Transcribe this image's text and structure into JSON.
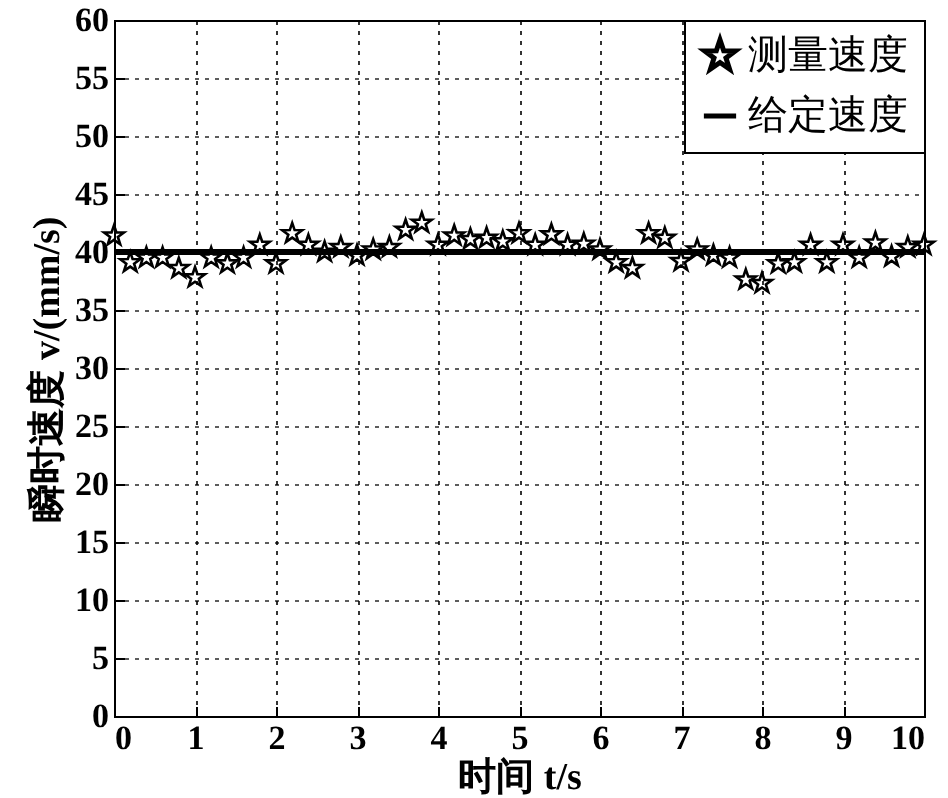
{
  "chart_data": {
    "type": "scatter",
    "xlabel": "时间  t/s",
    "ylabel": "瞬时速度  v/(mm/s)",
    "xlim": [
      0,
      10
    ],
    "xticks": [
      0,
      1,
      2,
      3,
      4,
      5,
      6,
      7,
      8,
      9,
      10
    ],
    "ylim": [
      0,
      60
    ],
    "yticks": [
      0,
      5,
      10,
      15,
      20,
      25,
      30,
      35,
      40,
      45,
      50,
      55,
      60
    ],
    "grid": true,
    "legend": "top right",
    "series": [
      {
        "name": "测量速度",
        "type": "scatter",
        "marker": "star",
        "color": "#000000",
        "x": [
          0,
          0.2,
          0.4,
          0.6,
          0.8,
          1.0,
          1.2,
          1.4,
          1.6,
          1.8,
          2.0,
          2.2,
          2.4,
          2.6,
          2.8,
          3.0,
          3.2,
          3.4,
          3.6,
          3.8,
          4.0,
          4.2,
          4.4,
          4.6,
          4.8,
          5.0,
          5.2,
          5.4,
          5.6,
          5.8,
          6.0,
          6.2,
          6.4,
          6.6,
          6.8,
          7.0,
          7.2,
          7.4,
          7.6,
          7.8,
          8.0,
          8.2,
          8.4,
          8.6,
          8.8,
          9.0,
          9.2,
          9.4,
          9.6,
          9.8,
          10.0
        ],
        "values": [
          41.4,
          39.1,
          39.5,
          39.5,
          38.6,
          37.8,
          39.5,
          39.0,
          39.5,
          40.6,
          39.0,
          41.6,
          40.6,
          40.0,
          40.4,
          39.7,
          40.2,
          40.4,
          41.9,
          42.5,
          40.6,
          41.4,
          41.1,
          41.2,
          40.9,
          41.6,
          40.6,
          41.5,
          40.6,
          40.7,
          40.2,
          39.1,
          38.6,
          41.6,
          41.2,
          39.2,
          40.2,
          39.7,
          39.5,
          37.6,
          37.3,
          39.0,
          39.1,
          40.6,
          39.1,
          40.6,
          39.5,
          40.8,
          39.6,
          40.4,
          40.6
        ]
      },
      {
        "name": "给定速度",
        "type": "line",
        "marker": "none",
        "color": "#000000",
        "x": [
          0,
          10
        ],
        "values": [
          40,
          40
        ]
      }
    ]
  }
}
